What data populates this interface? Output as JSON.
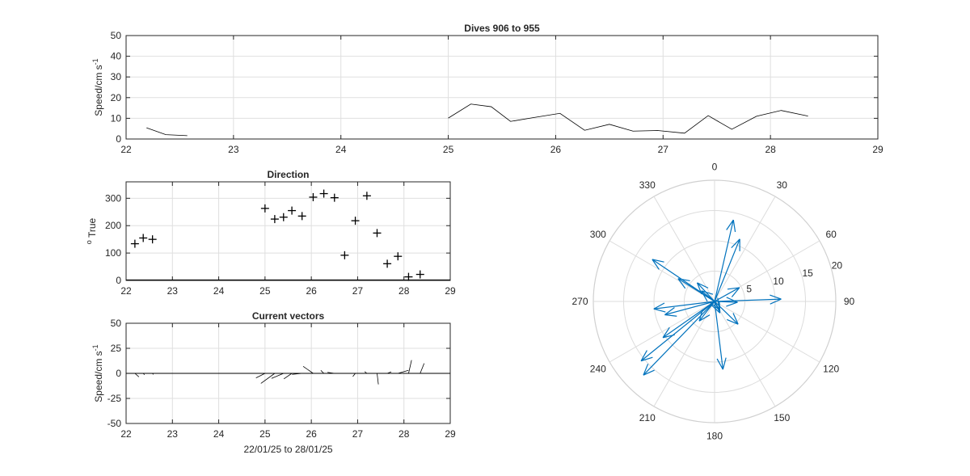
{
  "figure": {
    "background": "#ffffff"
  },
  "chart_data": [
    {
      "id": "speed",
      "type": "line",
      "title": "Dives 906 to 955",
      "xlabel": "",
      "ylabel": "Speed/cm s",
      "ylabel_sup": "-1",
      "xlim": [
        22,
        29
      ],
      "ylim": [
        0,
        50
      ],
      "xticks": [
        22,
        23,
        24,
        25,
        26,
        27,
        28,
        29
      ],
      "yticks": [
        0,
        10,
        20,
        30,
        40,
        50
      ],
      "grid": true,
      "line_color": "#000000",
      "segments": [
        [
          [
            22.19,
            5.4
          ],
          [
            22.37,
            2.1
          ],
          [
            22.57,
            1.6
          ]
        ],
        [
          [
            25.0,
            10.1
          ],
          [
            25.21,
            16.9
          ],
          [
            25.4,
            15.6
          ],
          [
            25.58,
            8.5
          ],
          [
            25.8,
            10.4
          ],
          [
            26.04,
            12.4
          ],
          [
            26.27,
            4.2
          ],
          [
            26.5,
            7.1
          ],
          [
            26.72,
            3.8
          ],
          [
            26.95,
            4.1
          ],
          [
            27.2,
            2.8
          ],
          [
            27.42,
            11.3
          ],
          [
            27.64,
            4.7
          ],
          [
            27.87,
            11.0
          ],
          [
            28.1,
            13.8
          ],
          [
            28.35,
            11.1
          ]
        ]
      ]
    },
    {
      "id": "direction",
      "type": "scatter",
      "title": "Direction",
      "xlabel": "",
      "ylabel": "True",
      "ylabel_prefix": "o",
      "xlim": [
        22,
        29
      ],
      "ylim": [
        0,
        360
      ],
      "xticks": [
        22,
        23,
        24,
        25,
        26,
        27,
        28,
        29
      ],
      "yticks": [
        0,
        100,
        200,
        300
      ],
      "grid": true,
      "marker": "+",
      "marker_color": "#000000",
      "points": [
        [
          22.19,
          134
        ],
        [
          22.37,
          155
        ],
        [
          22.57,
          150
        ],
        [
          25.0,
          263
        ],
        [
          25.21,
          224
        ],
        [
          25.4,
          231
        ],
        [
          25.58,
          255
        ],
        [
          25.8,
          235
        ],
        [
          26.04,
          304
        ],
        [
          26.27,
          317
        ],
        [
          26.5,
          302
        ],
        [
          26.72,
          92
        ],
        [
          26.95,
          218
        ],
        [
          27.2,
          309
        ],
        [
          27.42,
          173
        ],
        [
          27.64,
          61
        ],
        [
          27.87,
          88
        ],
        [
          28.1,
          13
        ],
        [
          28.35,
          22
        ]
      ]
    },
    {
      "id": "vectors",
      "type": "line",
      "title": "Current vectors",
      "xlabel": "22/01/25 to 28/01/25",
      "ylabel": "Speed/cm s",
      "ylabel_sup": "-1",
      "xlim": [
        22,
        29
      ],
      "ylim": [
        -50,
        50
      ],
      "xticks": [
        22,
        23,
        24,
        25,
        26,
        27,
        28,
        29
      ],
      "yticks": [
        -50,
        -25,
        0,
        25,
        50
      ],
      "grid": true,
      "line_color": "#000000",
      "sticks": [
        [
          22.19,
          4.0,
          -3.5
        ],
        [
          22.37,
          1.3,
          -1.4
        ],
        [
          22.57,
          0.8,
          -1.1
        ],
        [
          25.0,
          -9.0,
          -4.5
        ],
        [
          25.21,
          -13.8,
          -10.0
        ],
        [
          25.4,
          -12.0,
          -5.0
        ],
        [
          25.58,
          -8.0,
          -5.5
        ],
        [
          25.8,
          -10.0,
          -1.0
        ],
        [
          26.04,
          -10.0,
          7.0
        ],
        [
          26.27,
          -3.0,
          3.0
        ],
        [
          26.5,
          -7.0,
          1.0
        ],
        [
          26.72,
          3.8,
          0.0
        ],
        [
          26.95,
          -2.5,
          -3.2
        ],
        [
          27.2,
          -2.2,
          1.8
        ],
        [
          27.42,
          1.3,
          -11.0
        ],
        [
          27.64,
          4.0,
          1.5
        ],
        [
          27.87,
          10.5,
          3.0
        ],
        [
          28.1,
          3.0,
          13.2
        ],
        [
          28.35,
          4.0,
          10.0
        ]
      ]
    },
    {
      "id": "polar",
      "type": "compass",
      "title": "",
      "theta_zero": "top",
      "theta_direction": "clockwise",
      "angle_ticks": [
        0,
        30,
        60,
        90,
        120,
        150,
        180,
        210,
        240,
        270,
        300,
        330
      ],
      "r_ticks": [
        5,
        10,
        15,
        20
      ],
      "rlim": [
        0,
        20
      ],
      "grid": true,
      "arrow_color": "#0072bd",
      "vectors": [
        [
          134,
          5.4
        ],
        [
          155,
          2.1
        ],
        [
          150,
          1.6
        ],
        [
          263,
          10.1
        ],
        [
          224,
          16.9
        ],
        [
          231,
          15.6
        ],
        [
          255,
          8.5
        ],
        [
          235,
          10.4
        ],
        [
          304,
          12.4
        ],
        [
          317,
          4.2
        ],
        [
          302,
          7.1
        ],
        [
          92,
          3.8
        ],
        [
          218,
          4.1
        ],
        [
          309,
          2.8
        ],
        [
          173,
          11.3
        ],
        [
          61,
          4.7
        ],
        [
          88,
          11.0
        ],
        [
          13,
          13.8
        ],
        [
          22,
          11.1
        ]
      ]
    }
  ]
}
